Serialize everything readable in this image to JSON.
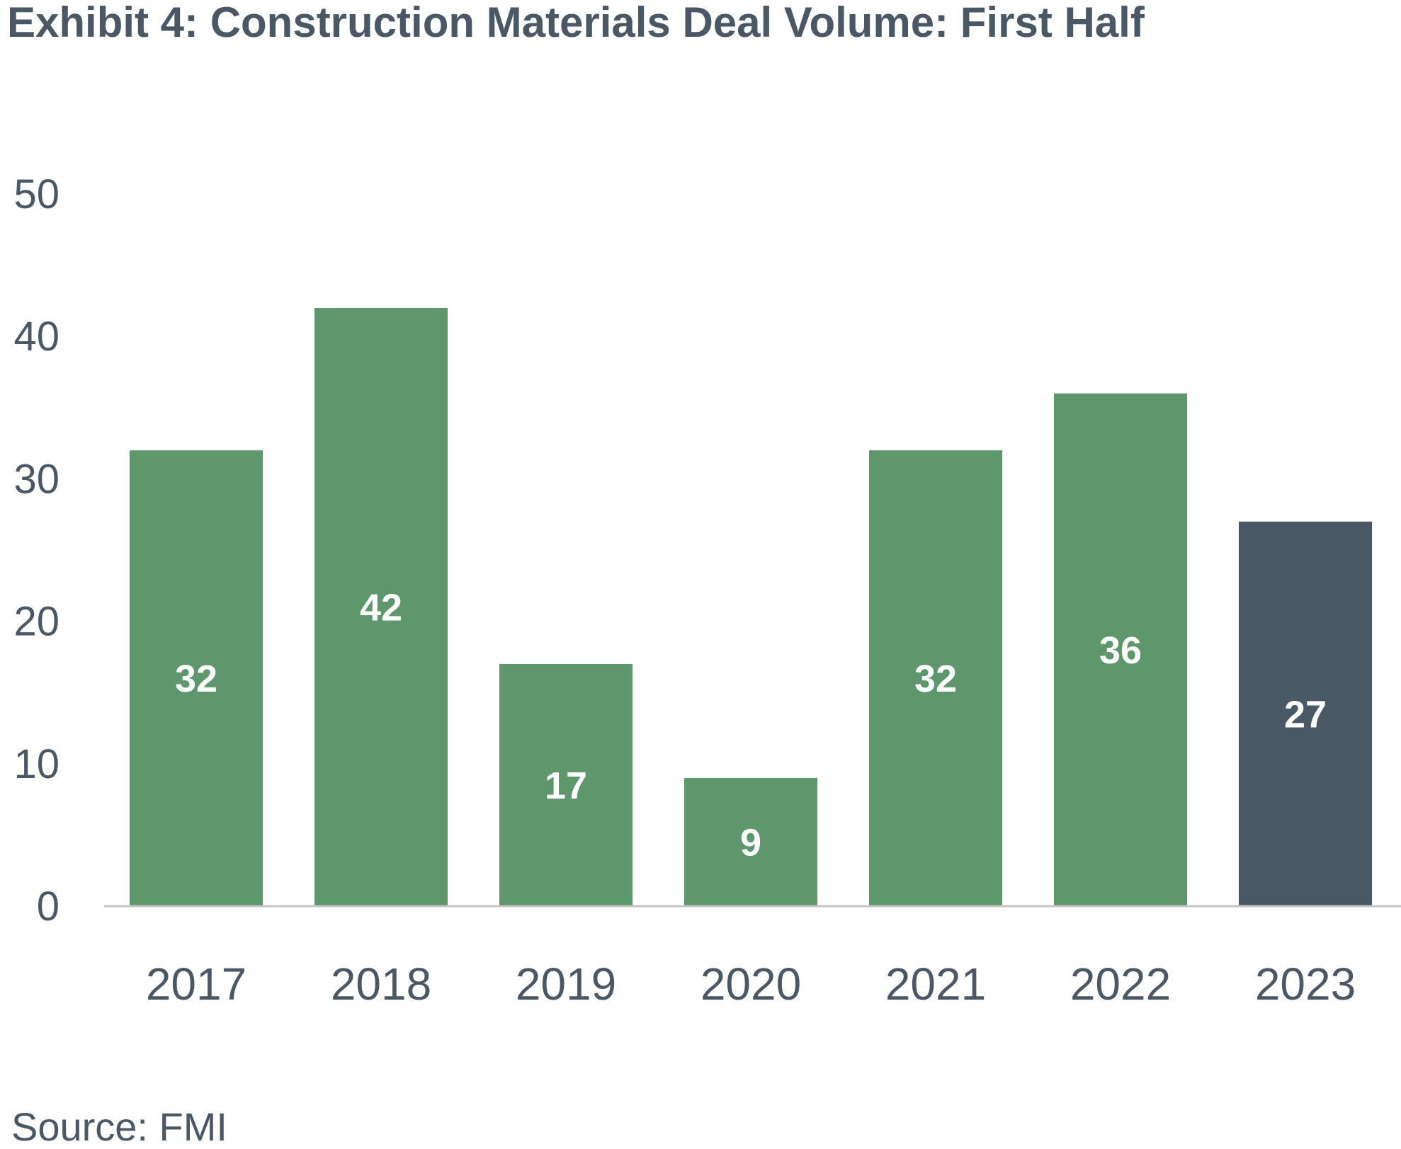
{
  "chart_data": {
    "type": "bar",
    "title": "Exhibit 4: Construction Materials Deal Volume: First Half",
    "categories": [
      "2017",
      "2018",
      "2019",
      "2020",
      "2021",
      "2022",
      "2023"
    ],
    "values": [
      32,
      42,
      17,
      9,
      32,
      36,
      27
    ],
    "data_labels": [
      "32",
      "42",
      "17",
      "9",
      "32",
      "36",
      "27"
    ],
    "xlabel": "",
    "ylabel": "",
    "ylim": [
      0,
      50
    ],
    "yticks": [
      "0",
      "10",
      "20",
      "30",
      "40",
      "50"
    ],
    "grid": false,
    "legend": "none",
    "colors": {
      "default_bar": "#5f976d",
      "highlight_bar": "#4a5866",
      "highlight_category": "2023",
      "axis_line": "#c4c4c4",
      "data_label": "#ffffff",
      "text": "#4a5866"
    }
  },
  "source": "Source: FMI"
}
